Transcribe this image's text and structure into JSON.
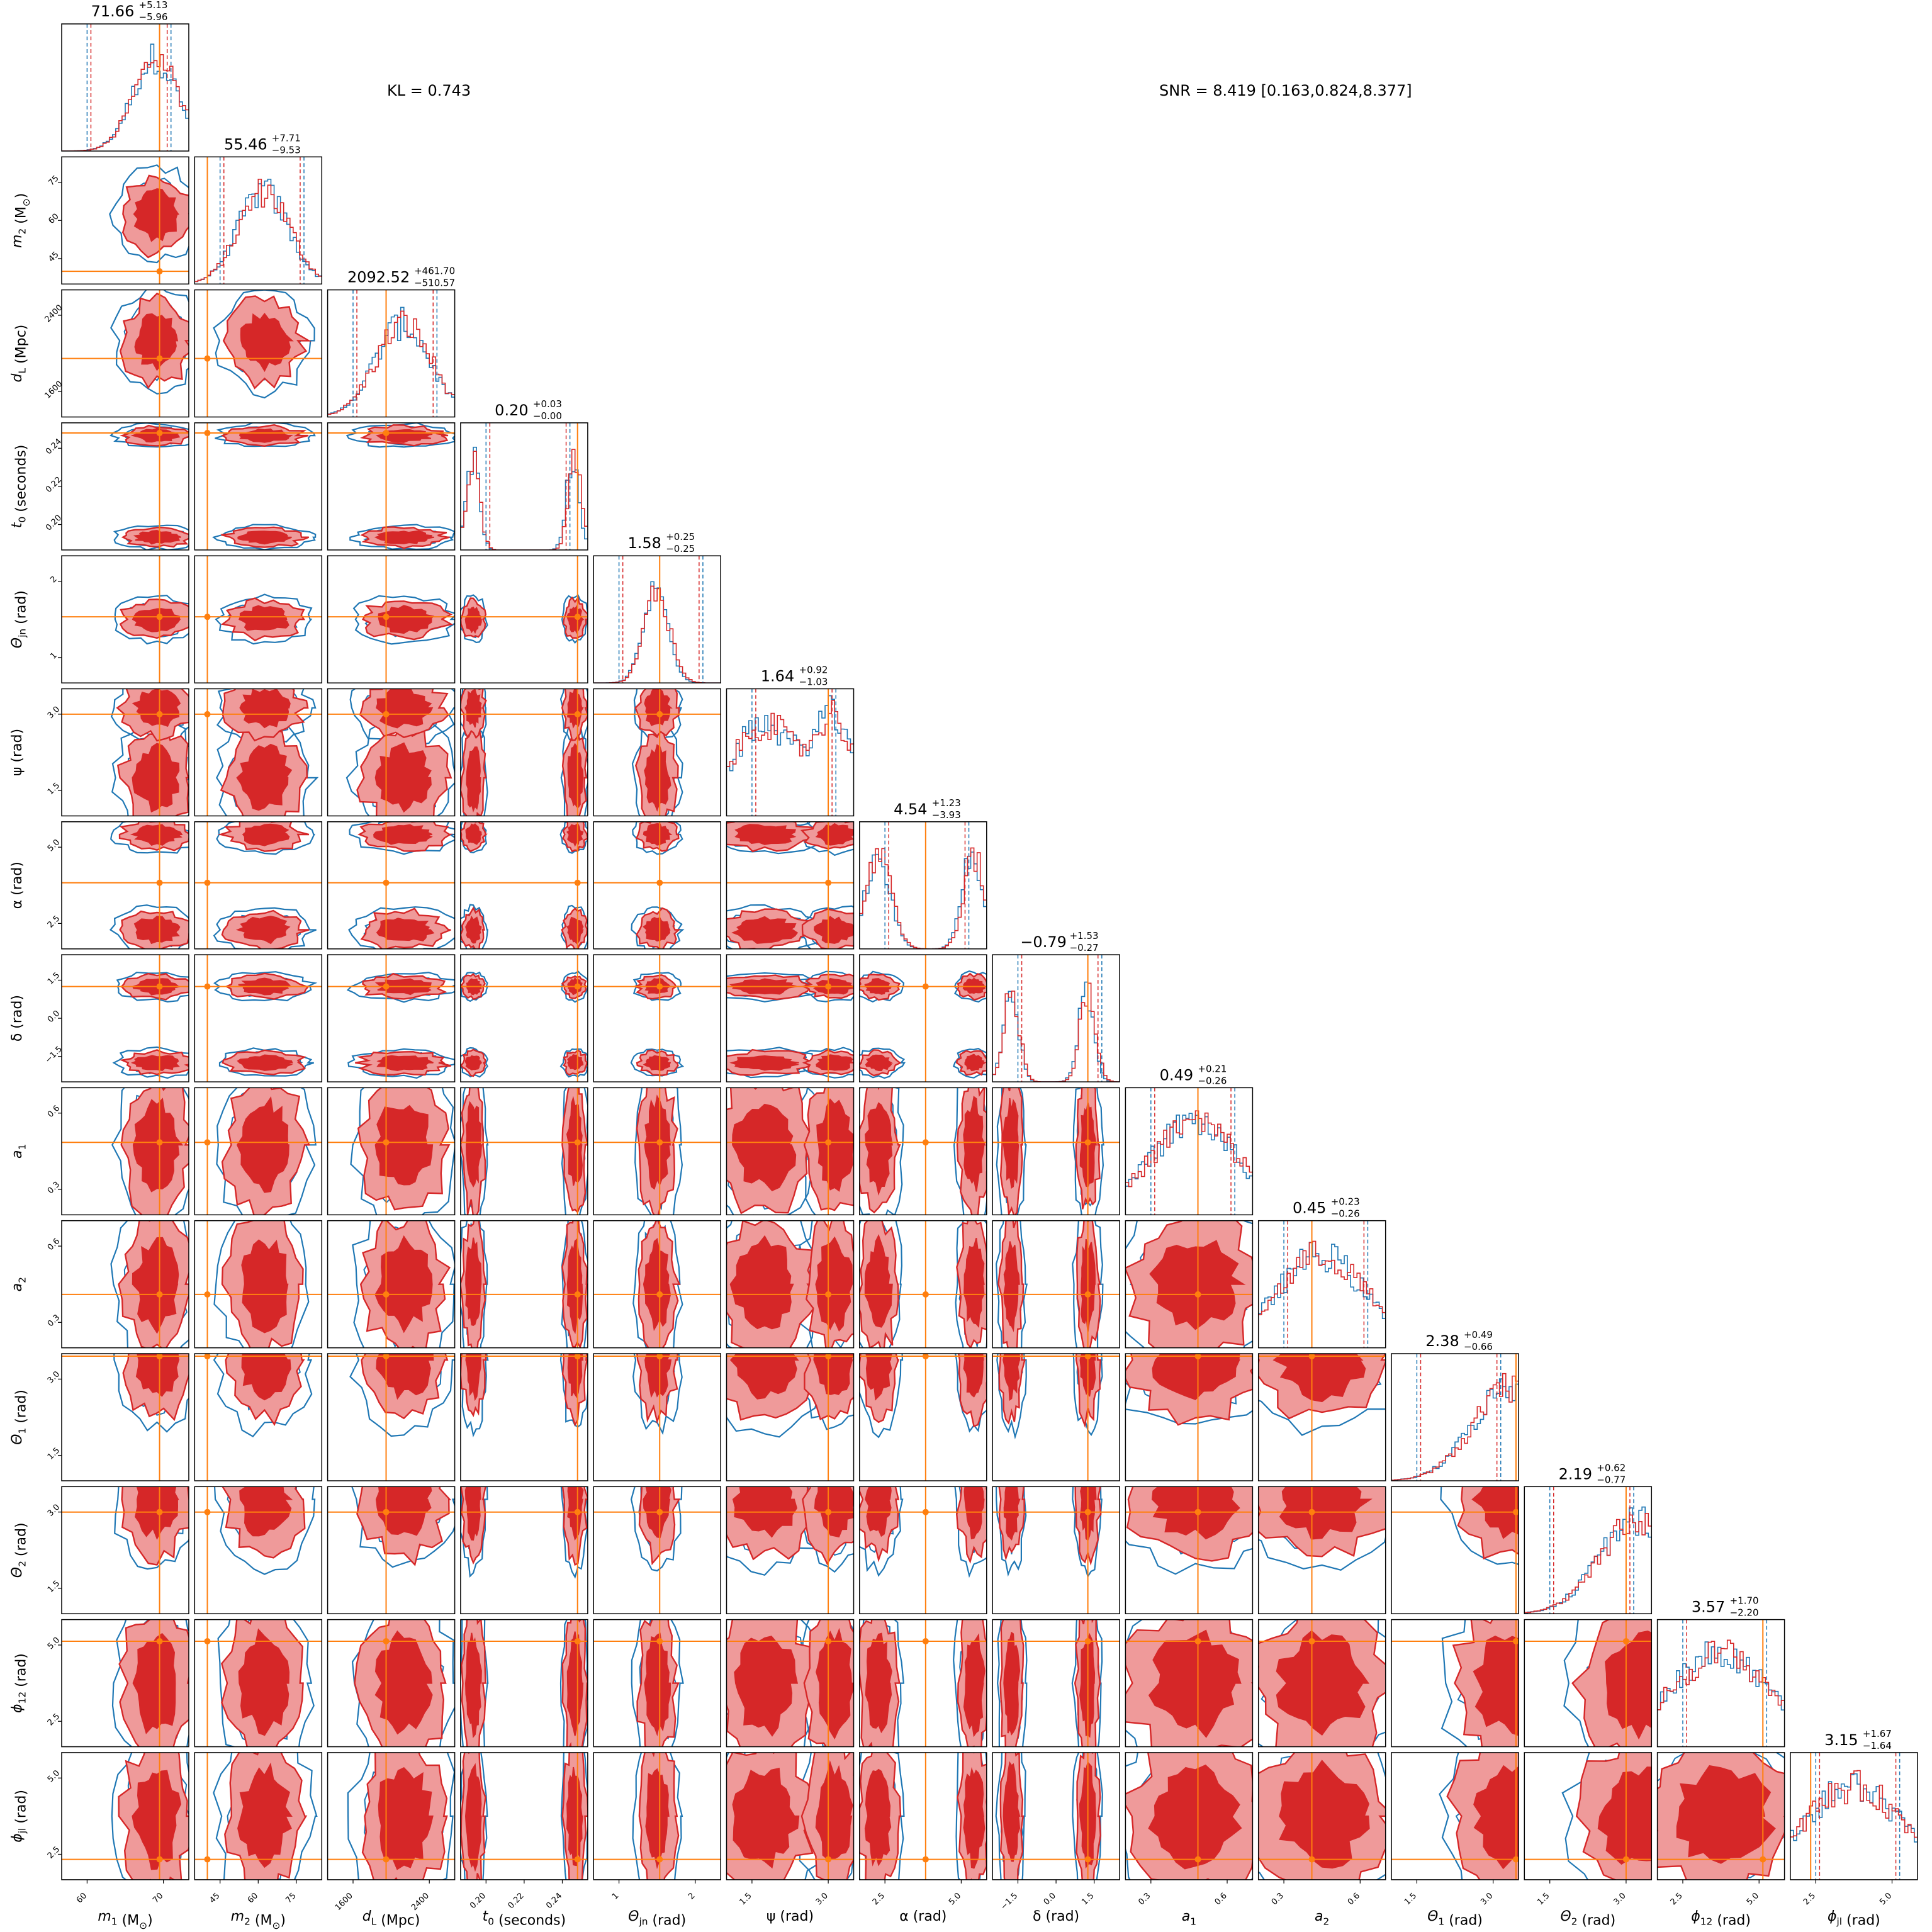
{
  "annotations": {
    "kl": "KL = 0.743",
    "snr": "SNR = 8.419 [0.163,0.824,8.377]"
  },
  "colors": {
    "posterior_a": "#d62728",
    "posterior_b": "#1f77b4",
    "truth": "#ff7f0e"
  },
  "chart_data": {
    "type": "corner",
    "parameters": [
      {
        "xlabel": "m_1 (M_⊙)",
        "ylabel": "",
        "title_value": "71.66",
        "title_plus": "+5.13",
        "title_minus": "−5.96",
        "xticks": [
          "60",
          "70"
        ],
        "yticks": [],
        "truth": 0.77
      },
      {
        "xlabel": "m_2 (M_⊙)",
        "ylabel": "m_2 (M_⊙)",
        "title_value": "55.46",
        "title_plus": "+7.71",
        "title_minus": "−9.53",
        "xticks": [
          "45",
          "60",
          "75"
        ],
        "yticks": [
          "45",
          "60",
          "75"
        ],
        "truth": 0.1
      },
      {
        "xlabel": "d_L (Mpc)",
        "ylabel": "d_L (Mpc)",
        "title_value": "2092.52",
        "title_plus": "+461.70",
        "title_minus": "−510.57",
        "xticks": [
          "1600",
          "2400"
        ],
        "yticks": [
          "1600",
          "2400"
        ],
        "truth": 0.46
      },
      {
        "xlabel": "t_0 (seconds)",
        "ylabel": "t_0 (seconds)",
        "title_value": "0.20",
        "title_plus": "+0.03",
        "title_minus": "−0.00",
        "xticks": [
          "0.20",
          "0.22",
          "0.24"
        ],
        "yticks": [
          "0.20",
          "0.22",
          "0.24"
        ],
        "truth": 0.92
      },
      {
        "xlabel": "Θ_jn (rad)",
        "ylabel": "Θ_jn (rad)",
        "title_value": "1.58",
        "title_plus": "+0.25",
        "title_minus": "−0.25",
        "xticks": [
          "1",
          "2"
        ],
        "yticks": [
          "1",
          "2"
        ],
        "truth": 0.52
      },
      {
        "xlabel": "ψ (rad)",
        "ylabel": "ψ (rad)",
        "title_value": "1.64",
        "title_plus": "+0.92",
        "title_minus": "−1.03",
        "xticks": [
          "1.5",
          "3.0"
        ],
        "yticks": [
          "1.5",
          "3.0"
        ],
        "truth": 0.8
      },
      {
        "xlabel": "α (rad)",
        "ylabel": "α (rad)",
        "title_value": "4.54",
        "title_plus": "+1.23",
        "title_minus": "−3.93",
        "xticks": [
          "2.5",
          "5.0"
        ],
        "yticks": [
          "2.5",
          "5.0"
        ],
        "truth": 0.52
      },
      {
        "xlabel": "δ (rad)",
        "ylabel": "δ (rad)",
        "title_value": "−0.79",
        "title_plus": "+1.53",
        "title_minus": "−0.27",
        "xticks": [
          "−1.5",
          "0.0",
          "1.5"
        ],
        "yticks": [
          "−1.5",
          "0.0",
          "1.5"
        ],
        "truth": 0.75
      },
      {
        "xlabel": "a_1",
        "ylabel": "a_1",
        "title_value": "0.49",
        "title_plus": "+0.21",
        "title_minus": "−0.26",
        "xticks": [
          "0.3",
          "0.6"
        ],
        "yticks": [
          "0.3",
          "0.6"
        ],
        "truth": 0.57
      },
      {
        "xlabel": "a_2",
        "ylabel": "a_2",
        "title_value": "0.45",
        "title_plus": "+0.23",
        "title_minus": "−0.26",
        "xticks": [
          "0.3",
          "0.6"
        ],
        "yticks": [
          "0.3",
          "0.6"
        ],
        "truth": 0.42
      },
      {
        "xlabel": "Θ_1 (rad)",
        "ylabel": "Θ_1 (rad)",
        "title_value": "2.38",
        "title_plus": "+0.49",
        "title_minus": "−0.66",
        "xticks": [
          "1.5",
          "3.0"
        ],
        "yticks": [
          "1.5",
          "3.0"
        ],
        "truth": 0.98
      },
      {
        "xlabel": "Θ_2 (rad)",
        "ylabel": "Θ_2 (rad)",
        "title_value": "2.19",
        "title_plus": "+0.62",
        "title_minus": "−0.77",
        "xticks": [
          "1.5",
          "3.0"
        ],
        "yticks": [
          "1.5",
          "3.0"
        ],
        "truth": 0.8
      },
      {
        "xlabel": "ϕ_12 (rad)",
        "ylabel": "ϕ_12 (rad)",
        "title_value": "3.57",
        "title_plus": "+1.70",
        "title_minus": "−2.20",
        "xticks": [
          "2.5",
          "5.0"
        ],
        "yticks": [
          "2.5",
          "5.0"
        ],
        "truth": 0.83
      },
      {
        "xlabel": "ϕ_jl (rad)",
        "ylabel": "ϕ_jl (rad)",
        "title_value": "3.15",
        "title_plus": "+1.67",
        "title_minus": "−1.64",
        "xticks": [
          "2.5",
          "5.0"
        ],
        "yticks": [
          "2.5",
          "5.0"
        ],
        "truth": 0.16
      }
    ]
  }
}
